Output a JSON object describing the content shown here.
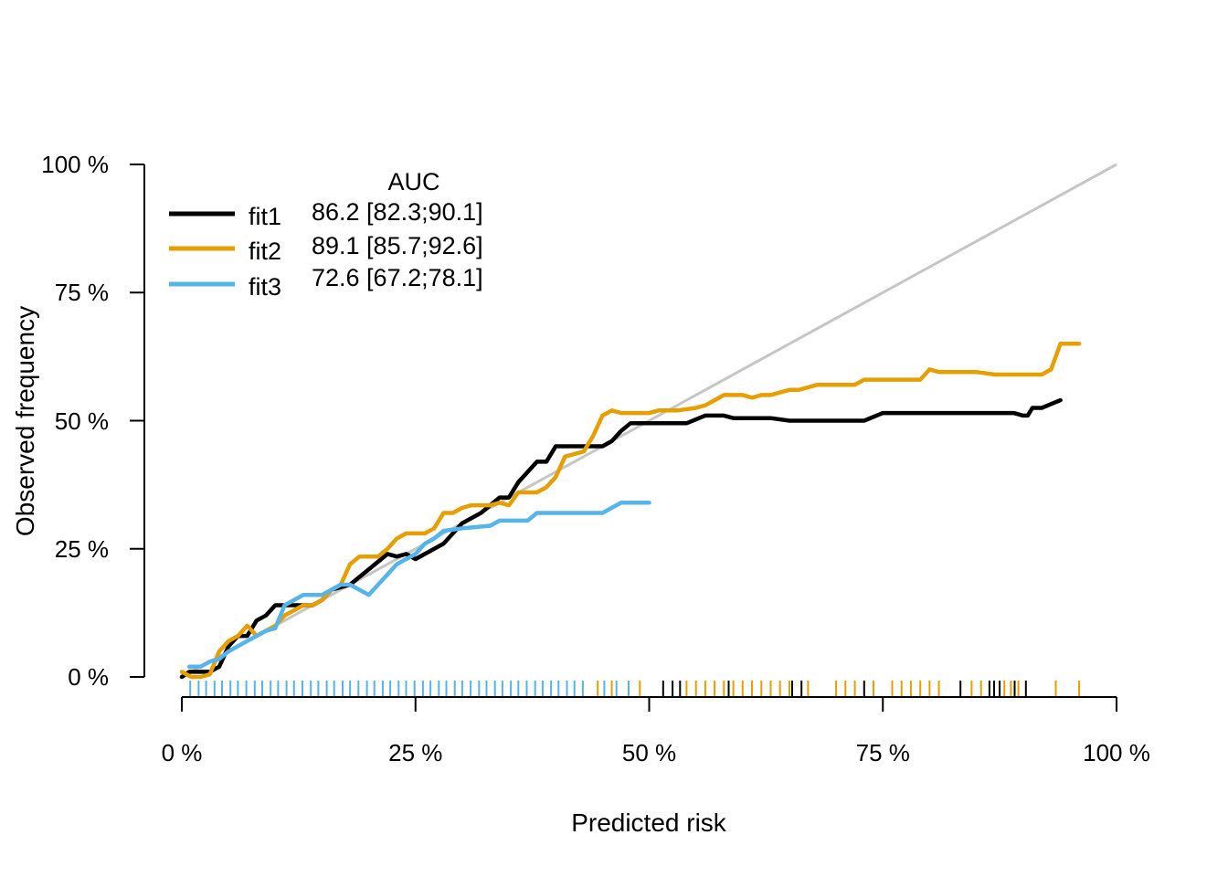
{
  "chart_data": {
    "type": "line",
    "xlabel": "Predicted risk",
    "ylabel": "Observed frequency",
    "xlim": [
      0,
      100
    ],
    "ylim": [
      0,
      100
    ],
    "x_ticks": [
      "0 %",
      "25 %",
      "50 %",
      "75 %",
      "100 %"
    ],
    "y_ticks": [
      "0 %",
      "25 %",
      "50 %",
      "75 %",
      "100 %"
    ],
    "reference_line": {
      "from": [
        0,
        0
      ],
      "to": [
        100,
        100
      ],
      "color": "#c6c6c6"
    },
    "legend": {
      "title": "AUC",
      "placement": "top-left",
      "entries": [
        {
          "name": "fit1",
          "auc": "86.2 [82.3;90.1]"
        },
        {
          "name": "fit2",
          "auc": "89.1 [85.7;92.6]"
        },
        {
          "name": "fit3",
          "auc": "72.6 [67.2;78.1]"
        }
      ]
    },
    "series": [
      {
        "name": "fit1",
        "color": "#000000",
        "points": [
          [
            0,
            0
          ],
          [
            0.8,
            1
          ],
          [
            3,
            1
          ],
          [
            4,
            2
          ],
          [
            5,
            6
          ],
          [
            6,
            8
          ],
          [
            7,
            8
          ],
          [
            8,
            11
          ],
          [
            9,
            12
          ],
          [
            10,
            14
          ],
          [
            12,
            14
          ],
          [
            14,
            14
          ],
          [
            15,
            15
          ],
          [
            16,
            17
          ],
          [
            18,
            18
          ],
          [
            20,
            21
          ],
          [
            22,
            24
          ],
          [
            23,
            23.5
          ],
          [
            24,
            24
          ],
          [
            25,
            23
          ],
          [
            26,
            24
          ],
          [
            28,
            26
          ],
          [
            29,
            28
          ],
          [
            30,
            30
          ],
          [
            32,
            32
          ],
          [
            34,
            35
          ],
          [
            35,
            35
          ],
          [
            36,
            38
          ],
          [
            37,
            40
          ],
          [
            38,
            42
          ],
          [
            39,
            42
          ],
          [
            40,
            45
          ],
          [
            45,
            45
          ],
          [
            46,
            46
          ],
          [
            47,
            48
          ],
          [
            48,
            49.5
          ],
          [
            50,
            49.5
          ],
          [
            54,
            49.5
          ],
          [
            56,
            51
          ],
          [
            58,
            51
          ],
          [
            59,
            50.5
          ],
          [
            63,
            50.5
          ],
          [
            65,
            50
          ],
          [
            73,
            50
          ],
          [
            75,
            51.5
          ],
          [
            89,
            51.5
          ],
          [
            90,
            51
          ],
          [
            90.5,
            51
          ],
          [
            91,
            52.5
          ],
          [
            92,
            52.5
          ],
          [
            94,
            54
          ]
        ],
        "rug": [
          51.5,
          52.5,
          53.3,
          58.5,
          65.3,
          66.3,
          73.0,
          83.3,
          86.4,
          86.9,
          87.5,
          89.1,
          90.3
        ]
      },
      {
        "name": "fit2",
        "color": "#e69f00",
        "points": [
          [
            0,
            1
          ],
          [
            1,
            0
          ],
          [
            2,
            0
          ],
          [
            3,
            0.5
          ],
          [
            4,
            5
          ],
          [
            5,
            7
          ],
          [
            6,
            8
          ],
          [
            7,
            10
          ],
          [
            8,
            8
          ],
          [
            9,
            9
          ],
          [
            10,
            10
          ],
          [
            11,
            12
          ],
          [
            12,
            13
          ],
          [
            13,
            14
          ],
          [
            14,
            14
          ],
          [
            15,
            15
          ],
          [
            16,
            17
          ],
          [
            17,
            18
          ],
          [
            18,
            22
          ],
          [
            19,
            23.5
          ],
          [
            21,
            23.5
          ],
          [
            22,
            25
          ],
          [
            23,
            27
          ],
          [
            24,
            28
          ],
          [
            25,
            28
          ],
          [
            26,
            28
          ],
          [
            27,
            29
          ],
          [
            28,
            32
          ],
          [
            29,
            32
          ],
          [
            30,
            33
          ],
          [
            31,
            33.5
          ],
          [
            33,
            33.5
          ],
          [
            34,
            34
          ],
          [
            35,
            33.5
          ],
          [
            36,
            36
          ],
          [
            38,
            36
          ],
          [
            39,
            37
          ],
          [
            40,
            39
          ],
          [
            41,
            43
          ],
          [
            43,
            44
          ],
          [
            44,
            47
          ],
          [
            45,
            51
          ],
          [
            46,
            52
          ],
          [
            47,
            51.5
          ],
          [
            48,
            51.5
          ],
          [
            50,
            51.5
          ],
          [
            51,
            52
          ],
          [
            53,
            52
          ],
          [
            55,
            52.5
          ],
          [
            56,
            53
          ],
          [
            57,
            54
          ],
          [
            58,
            55
          ],
          [
            60,
            55
          ],
          [
            61,
            54.5
          ],
          [
            62,
            55
          ],
          [
            63,
            55
          ],
          [
            64,
            55.5
          ],
          [
            65,
            56
          ],
          [
            66,
            56
          ],
          [
            67,
            56.5
          ],
          [
            68,
            57
          ],
          [
            72,
            57
          ],
          [
            73,
            58
          ],
          [
            78,
            58
          ],
          [
            79,
            58
          ],
          [
            80,
            60
          ],
          [
            81,
            59.5
          ],
          [
            85,
            59.5
          ],
          [
            87,
            59
          ],
          [
            92,
            59
          ],
          [
            93,
            60
          ],
          [
            94,
            65
          ],
          [
            96,
            65
          ]
        ],
        "rug": [
          44.5,
          46.0,
          49.0,
          54.0,
          55.0,
          56.0,
          57.0,
          58.0,
          59.0,
          60.0,
          61.0,
          62.0,
          63.0,
          64.0,
          65.0,
          67.0,
          70.0,
          71.0,
          72.0,
          74.0,
          76.0,
          77.0,
          78.0,
          79.0,
          80.0,
          81.0,
          84.5,
          85.5,
          88.0,
          88.7,
          89.5,
          93.5,
          96.0
        ]
      },
      {
        "name": "fit3",
        "color": "#56b4e9",
        "points": [
          [
            0.8,
            2
          ],
          [
            2,
            2
          ],
          [
            3,
            3
          ],
          [
            4,
            3.5
          ],
          [
            5,
            5
          ],
          [
            6,
            6
          ],
          [
            7,
            7
          ],
          [
            8,
            8
          ],
          [
            9,
            9
          ],
          [
            10,
            9.5
          ],
          [
            11,
            14
          ],
          [
            12,
            15
          ],
          [
            13,
            16
          ],
          [
            15,
            16
          ],
          [
            16,
            17
          ],
          [
            17,
            18
          ],
          [
            18,
            18
          ],
          [
            19,
            17
          ],
          [
            20,
            16
          ],
          [
            21,
            18
          ],
          [
            22,
            20
          ],
          [
            23,
            22
          ],
          [
            24,
            23
          ],
          [
            25,
            24
          ],
          [
            26,
            26
          ],
          [
            27,
            27
          ],
          [
            28,
            28.5
          ],
          [
            30,
            29
          ],
          [
            33,
            29.5
          ],
          [
            34,
            30.5
          ],
          [
            37,
            30.5
          ],
          [
            38,
            32
          ],
          [
            45,
            32
          ],
          [
            46,
            33
          ],
          [
            47,
            34
          ],
          [
            50,
            34
          ]
        ],
        "rug": [
          0.9,
          1.8,
          2.6,
          3.5,
          4.3,
          5.2,
          6.0,
          6.9,
          7.8,
          8.6,
          9.5,
          10.3,
          11.2,
          12.0,
          12.9,
          13.8,
          14.6,
          15.5,
          16.3,
          17.2,
          18.0,
          18.9,
          19.8,
          20.6,
          21.5,
          22.3,
          23.2,
          24.0,
          24.9,
          25.8,
          26.6,
          27.5,
          28.3,
          29.2,
          30.0,
          30.9,
          31.8,
          32.6,
          33.5,
          34.3,
          35.2,
          36.0,
          36.9,
          37.8,
          38.6,
          39.5,
          40.3,
          41.2,
          42.0,
          42.9,
          45.2,
          46.5,
          47.8
        ]
      }
    ]
  }
}
